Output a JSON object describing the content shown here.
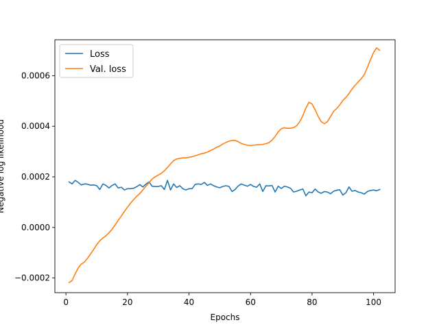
{
  "chart_data": {
    "type": "line",
    "title": "",
    "xlabel": "Epochs",
    "ylabel": "Negative log likelihood",
    "xlim": [
      -3.6,
      107.0
    ],
    "ylim": [
      -0.000258,
      0.000742
    ],
    "xticks": [
      0,
      20,
      40,
      60,
      80,
      100
    ],
    "xtick_labels": [
      "0",
      "20",
      "40",
      "60",
      "80",
      "100"
    ],
    "yticks": [
      -0.0002,
      0.0,
      0.0002,
      0.0004,
      0.0006
    ],
    "ytick_labels": [
      "−0.0002",
      "0.0000",
      "0.0002",
      "0.0004",
      "0.0006"
    ],
    "grid": false,
    "legend_position": "top-left",
    "x": [
      1,
      2,
      3,
      4,
      5,
      6,
      7,
      8,
      9,
      10,
      11,
      12,
      13,
      14,
      15,
      16,
      17,
      18,
      19,
      20,
      21,
      22,
      23,
      24,
      25,
      26,
      27,
      28,
      29,
      30,
      31,
      32,
      33,
      34,
      35,
      36,
      37,
      38,
      39,
      40,
      41,
      42,
      43,
      44,
      45,
      46,
      47,
      48,
      49,
      50,
      51,
      52,
      53,
      54,
      55,
      56,
      57,
      58,
      59,
      60,
      61,
      62,
      63,
      64,
      65,
      66,
      67,
      68,
      69,
      70,
      71,
      72,
      73,
      74,
      75,
      76,
      77,
      78,
      79,
      80,
      81,
      82,
      83,
      84,
      85,
      86,
      87,
      88,
      89,
      90,
      91,
      92,
      93,
      94,
      95,
      96,
      97,
      98,
      99,
      100,
      101,
      102
    ],
    "series": [
      {
        "name": "Loss",
        "color": "#1f77b4",
        "values": [
          0.00018,
          0.000172,
          0.000186,
          0.000178,
          0.000168,
          0.000172,
          0.000171,
          0.000167,
          0.000168,
          0.000165,
          0.00015,
          0.000172,
          0.000166,
          0.000156,
          0.000166,
          0.000172,
          0.000156,
          0.000159,
          0.000148,
          0.000153,
          0.000153,
          0.000155,
          0.000161,
          0.000169,
          0.00016,
          0.000171,
          0.00018,
          0.000163,
          0.000162,
          0.000162,
          0.000165,
          0.00015,
          0.000186,
          0.000148,
          0.000172,
          0.000158,
          0.000165,
          0.000153,
          0.000148,
          0.000153,
          0.000153,
          0.00017,
          0.000172,
          0.00017,
          0.000178,
          0.000166,
          0.000172,
          0.000165,
          0.00016,
          0.000157,
          0.000162,
          0.000165,
          0.000162,
          0.000142,
          0.00015,
          0.000164,
          0.000172,
          0.000167,
          0.000163,
          0.00017,
          0.000162,
          0.000159,
          0.000172,
          0.000142,
          0.000165,
          0.000164,
          0.000166,
          0.00014,
          0.000163,
          0.000154,
          0.000163,
          0.00016,
          0.000155,
          0.00014,
          0.000143,
          0.000148,
          0.000152,
          0.000125,
          0.00014,
          0.000137,
          0.000152,
          0.00014,
          0.000135,
          0.000142,
          0.00014,
          0.000133,
          0.000143,
          0.000147,
          0.000149,
          0.000128,
          0.000137,
          0.00016,
          0.000143,
          0.000146,
          0.00014,
          0.000137,
          0.000132,
          0.000142,
          0.000146,
          0.000148,
          0.000145,
          0.00015
        ]
      },
      {
        "name": "Val. loss",
        "color": "#ff7f0e",
        "values": [
          -0.000218,
          -0.00021,
          -0.000183,
          -0.00016,
          -0.000145,
          -0.000137,
          -0.000122,
          -0.000105,
          -8.7e-05,
          -6.8e-05,
          -5.3e-05,
          -4.2e-05,
          -3.3e-05,
          -2.1e-05,
          -7e-06,
          1e-05,
          2.8e-05,
          4.5e-05,
          6.3e-05,
          8e-05,
          9.6e-05,
          0.00011,
          0.000123,
          0.000134,
          0.000148,
          0.000163,
          0.000177,
          0.000191,
          0.0002,
          0.000207,
          0.000214,
          0.000224,
          0.000237,
          0.000251,
          0.000264,
          0.000271,
          0.000273,
          0.000275,
          0.000275,
          0.000277,
          0.00028,
          0.000283,
          0.000287,
          0.000291,
          0.000294,
          0.000298,
          0.000304,
          0.00031,
          0.000317,
          0.000322,
          0.00033,
          0.000336,
          0.000341,
          0.000344,
          0.000344,
          0.000339,
          0.000332,
          0.000328,
          0.000325,
          0.000324,
          0.000325,
          0.000327,
          0.000327,
          0.000328,
          0.000331,
          0.000335,
          0.000345,
          0.00036,
          0.000378,
          0.00039,
          0.000394,
          0.000392,
          0.000392,
          0.000395,
          0.000402,
          0.000418,
          0.000442,
          0.000472,
          0.000495,
          0.000488,
          0.000465,
          0.000439,
          0.000418,
          0.00041,
          0.000418,
          0.000438,
          0.000459,
          0.00047,
          0.000484,
          0.000502,
          0.000514,
          0.000529,
          0.000547,
          0.000562,
          0.000575,
          0.000588,
          0.000605,
          0.000633,
          0.000663,
          0.000692,
          0.00071,
          0.0007
        ]
      }
    ]
  }
}
